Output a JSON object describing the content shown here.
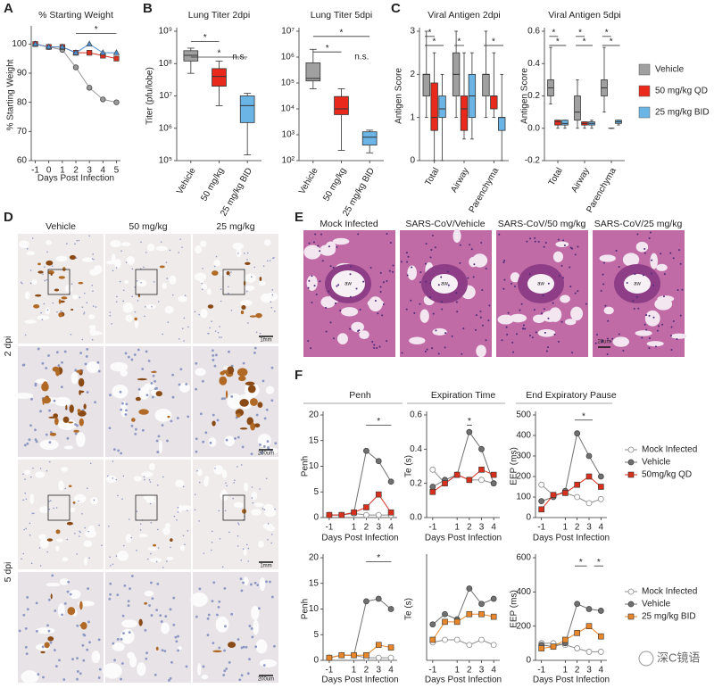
{
  "panel_labels": [
    "A",
    "B",
    "C",
    "D",
    "E",
    "F"
  ],
  "chart_data": [
    {
      "type": "line",
      "title": "% Starting Weight",
      "y_label": "% Starting Weight",
      "x_label": "Days Post Infection",
      "x": [
        -1,
        0,
        1,
        2,
        3,
        4,
        5
      ],
      "xlim": [
        -1.3,
        5.3
      ],
      "xticks": [
        -1,
        0,
        1,
        2,
        3,
        4,
        5
      ],
      "ylim": [
        60,
        105
      ],
      "yticks": [
        60,
        70,
        80,
        90,
        100
      ],
      "series": [
        {
          "color": "#9a9a9a",
          "marker": "circle",
          "values": [
            100,
            99,
            98,
            92,
            85,
            81,
            80
          ]
        },
        {
          "color": "#d9301e",
          "marker": "square",
          "values": [
            100,
            99,
            99,
            97,
            97,
            96,
            95
          ]
        },
        {
          "color": "#4f8fd0",
          "marker": "triangle",
          "values": [
            100,
            99,
            99,
            97,
            100,
            97,
            97
          ]
        }
      ],
      "annotations": [
        "*"
      ]
    },
    {
      "type": "box",
      "title": "Lung Titer 2dpi",
      "y_label": "Titer (pfu/lobe)",
      "log_scale": true,
      "categories": [
        "Vehicle",
        "50 mg/kg",
        "25 mg/kg BID"
      ],
      "colors": [
        "#a0a0a0",
        "#e8291c",
        "#6ab4e6"
      ],
      "values": [
        [
          50000000,
          120000000,
          180000000,
          250000000,
          300000000
        ],
        [
          5000000,
          20000000,
          40000000,
          70000000,
          120000000
        ],
        [
          150000,
          1500000,
          5000000,
          10000000,
          12000000
        ]
      ],
      "ylim": [
        100000,
        1000000000
      ],
      "yticks": [
        {
          "value": 100000,
          "label": "10⁵"
        },
        {
          "value": 1000000,
          "label": "10⁶"
        },
        {
          "value": 10000000,
          "label": "10⁷"
        },
        {
          "value": 100000000,
          "label": "10⁸"
        },
        {
          "value": 1000000000,
          "label": "10⁹"
        }
      ],
      "annotations": [
        "*",
        "*",
        "n.s."
      ]
    },
    {
      "type": "box",
      "title": "Lung Titer 5dpi",
      "log_scale": true,
      "categories": [
        "Vehicle",
        "50 mg/kg",
        "25 mg/kg BID"
      ],
      "colors": [
        "#a0a0a0",
        "#e8291c",
        "#6ab4e6"
      ],
      "values": [
        [
          60000,
          120000,
          150000,
          600000,
          2000000
        ],
        [
          250,
          6000,
          10000,
          30000,
          60000
        ],
        [
          200,
          400,
          800,
          1300,
          1500
        ]
      ],
      "ylim": [
        100,
        10000000
      ],
      "yticks": [
        {
          "value": 100,
          "label": "10²"
        },
        {
          "value": 1000,
          "label": "10³"
        },
        {
          "value": 10000,
          "label": "10⁴"
        },
        {
          "value": 100000,
          "label": "10⁵"
        },
        {
          "value": 1000000,
          "label": "10⁶"
        },
        {
          "value": 10000000,
          "label": "10⁷"
        }
      ],
      "annotations": [
        "*",
        "*",
        "n.s."
      ]
    },
    {
      "type": "box",
      "title": "Viral Antigen 2dpi",
      "y_label": "Antigen Score",
      "categories": [
        "Total",
        "Airway",
        "Parenchyma"
      ],
      "ylim": [
        0,
        3
      ],
      "yticks": [
        0,
        1,
        2,
        3
      ],
      "series": [
        {
          "color": "#a0a0a0",
          "values": [
            [
              1,
              1.5,
              2,
              2,
              3
            ],
            [
              1,
              1.5,
              2,
              2.5,
              3
            ],
            [
              1,
              1.5,
              2,
              2,
              3
            ]
          ]
        },
        {
          "color": "#e8291c",
          "values": [
            [
              0,
              0.7,
              1,
              1.8,
              2.5
            ],
            [
              0.5,
              0.7,
              1.2,
              1.5,
              2.5
            ],
            [
              1,
              1.2,
              1.5,
              1.5,
              2.5
            ]
          ]
        },
        {
          "color": "#6ab4e6",
          "values": [
            [
              0,
              1,
              1.2,
              1.5,
              2
            ],
            [
              0.5,
              1,
              1.5,
              2,
              2.5
            ],
            [
              0,
              0.7,
              1,
              1,
              2
            ]
          ]
        }
      ],
      "annotations": [
        "*",
        "*",
        "*",
        "*"
      ]
    },
    {
      "type": "box",
      "title": "Viral Antigen 5dpi",
      "y_label": "Antigen Score",
      "categories": [
        "Total",
        "Airway",
        "Parenchyma"
      ],
      "ylim": [
        -0.2,
        0.6
      ],
      "yticks": [
        -0.2,
        {
          "value": 0,
          "label": "0.0"
        },
        0.2,
        0.4,
        0.6
      ],
      "legend": "right",
      "series": [
        {
          "name": "Vehicle",
          "color": "#a0a0a0",
          "values": [
            [
              0.15,
              0.2,
              0.25,
              0.3,
              0.5
            ],
            [
              0,
              0.05,
              0.1,
              0.2,
              0.3
            ],
            [
              0.1,
              0.2,
              0.25,
              0.3,
              0.5
            ]
          ]
        },
        {
          "name": "50 mg/kg QD",
          "color": "#e8291c",
          "values": [
            [
              0,
              0.02,
              0.04,
              0.05,
              0.05
            ],
            [
              0,
              0.02,
              0.03,
              0.04,
              0.04
            ],
            [
              0,
              0,
              0,
              0,
              0
            ]
          ]
        },
        {
          "name": "25 mg/kg BID",
          "color": "#6ab4e6",
          "values": [
            [
              0,
              0.02,
              0.03,
              0.05,
              0.05
            ],
            [
              0,
              0.02,
              0.03,
              0.04,
              0.05
            ],
            [
              0.02,
              0.03,
              0.04,
              0.05,
              0.05
            ]
          ]
        }
      ],
      "annotations": [
        "*",
        "*",
        "*",
        "*",
        "*",
        "*"
      ]
    },
    {
      "type": "line",
      "title": "Penh",
      "y_label": "Penh",
      "x_label": "Days Post Infection",
      "x": [
        -1,
        0,
        1,
        2,
        3,
        4
      ],
      "xlim": [
        -1.5,
        4.5
      ],
      "xticks": [
        -1,
        1,
        2,
        3,
        4
      ],
      "ylim": [
        0,
        20
      ],
      "yticks": [
        0,
        5,
        10,
        15,
        20
      ],
      "series": [
        {
          "color": "#8c8c8c",
          "marker": "circle-open",
          "values": [
            0.5,
            0.5,
            0.8,
            0.5,
            0.5,
            0.5
          ]
        },
        {
          "color": "#707070",
          "marker": "circle",
          "values": [
            0.5,
            0.5,
            1,
            13,
            11,
            7
          ]
        },
        {
          "color": "#d9301e",
          "marker": "square",
          "values": [
            0.5,
            0.5,
            1,
            2,
            4.5,
            1
          ]
        }
      ],
      "annotations": [
        "*"
      ]
    },
    {
      "type": "line",
      "title": "Expiration Time",
      "y_label": "Te (s)",
      "x_label": "Days Post Infection",
      "x": [
        -1,
        0,
        1,
        2,
        3,
        4
      ],
      "xlim": [
        -1.5,
        4.5
      ],
      "xticks": [
        -1,
        1,
        2,
        3,
        4
      ],
      "ylim": [
        0,
        0.6
      ],
      "yticks": [
        {
          "value": 0,
          "label": "0.0"
        },
        0.2,
        0.4,
        0.6
      ],
      "series": [
        {
          "color": "#8c8c8c",
          "marker": "circle-open",
          "values": [
            0.28,
            0.2,
            0.25,
            0.22,
            0.22,
            0.2
          ]
        },
        {
          "color": "#707070",
          "marker": "circle",
          "values": [
            0.18,
            0.22,
            0.25,
            0.5,
            0.4,
            0.2
          ]
        },
        {
          "color": "#d9301e",
          "marker": "square",
          "values": [
            0.15,
            0.2,
            0.25,
            0.22,
            0.28,
            0.25
          ]
        }
      ],
      "annotations": [
        "*"
      ]
    },
    {
      "type": "line",
      "title": "End Expiratory Pause",
      "y_label": "EEP (ms)",
      "x_label": "Days Post Infection",
      "x": [
        -1,
        0,
        1,
        2,
        3,
        4
      ],
      "xlim": [
        -1.5,
        4.5
      ],
      "xticks": [
        -1,
        1,
        2,
        3,
        4
      ],
      "ylim": [
        0,
        500
      ],
      "yticks": [
        0,
        100,
        200,
        300,
        400,
        500
      ],
      "legend": "right",
      "series": [
        {
          "name": "Mock Infected",
          "color": "#8c8c8c",
          "marker": "circle-open",
          "values": [
            160,
            110,
            120,
            100,
            70,
            90
          ]
        },
        {
          "name": "Vehicle",
          "color": "#707070",
          "marker": "circle",
          "values": [
            80,
            100,
            130,
            410,
            300,
            200
          ]
        },
        {
          "name": "50mg/kg QD",
          "color": "#d9301e",
          "marker": "square",
          "values": [
            40,
            110,
            120,
            160,
            200,
            150
          ]
        }
      ],
      "annotations": [
        "*"
      ]
    },
    {
      "type": "line",
      "y_label": "Penh",
      "x_label": "Days Post Infection",
      "x": [
        -1,
        0,
        1,
        2,
        3,
        4
      ],
      "xlim": [
        -1.5,
        4.5
      ],
      "xticks": [
        -1,
        1,
        2,
        3,
        4
      ],
      "ylim": [
        0,
        20
      ],
      "yticks": [
        0,
        5,
        10,
        15,
        20
      ],
      "series": [
        {
          "color": "#8c8c8c",
          "marker": "circle-open",
          "values": [
            0.5,
            1,
            1,
            0.5,
            0.5,
            0.5
          ]
        },
        {
          "color": "#707070",
          "marker": "circle",
          "values": [
            0.5,
            1,
            1,
            11.5,
            12,
            10
          ]
        },
        {
          "color": "#e8862a",
          "marker": "square",
          "values": [
            0.5,
            1,
            1,
            1,
            3,
            2.5
          ]
        }
      ],
      "annotations": [
        "*"
      ]
    },
    {
      "type": "line",
      "y_label": "Te (s)",
      "x_label": "Days Post Infection",
      "x": [
        -1,
        0,
        1,
        2,
        3,
        4
      ],
      "xlim": [
        -1.5,
        4.5
      ],
      "xticks": [
        -1,
        1,
        2,
        3,
        4
      ],
      "ylim": [
        0,
        0.4
      ],
      "yticks": [],
      "series": [
        {
          "color": "#8c8c8c",
          "marker": "circle-open",
          "values": [
            0.07,
            0.08,
            0.08,
            0.06,
            0.08,
            0.06
          ]
        },
        {
          "color": "#707070",
          "marker": "circle",
          "values": [
            0.14,
            0.18,
            0.16,
            0.28,
            0.22,
            0.24
          ]
        },
        {
          "color": "#e8862a",
          "marker": "square",
          "values": [
            0.08,
            0.15,
            0.15,
            0.18,
            0.18,
            0.17
          ]
        }
      ]
    },
    {
      "type": "line",
      "y_label": "EEP (ms)",
      "x_label": "Days Post Infection",
      "x": [
        -1,
        0,
        1,
        2,
        3,
        4
      ],
      "xlim": [
        -1.5,
        4.5
      ],
      "xticks": [
        -1,
        1,
        2,
        3,
        4
      ],
      "ylim": [
        0,
        600
      ],
      "yticks": [
        0,
        200,
        400,
        600
      ],
      "legend": "right",
      "series": [
        {
          "name": "Mock Infected",
          "color": "#8c8c8c",
          "marker": "circle-open",
          "values": [
            100,
            100,
            90,
            70,
            50,
            50
          ]
        },
        {
          "name": "Vehicle",
          "color": "#707070",
          "marker": "circle",
          "values": [
            90,
            80,
            100,
            330,
            300,
            290
          ]
        },
        {
          "name": "25 mg/kg BID",
          "color": "#e8862a",
          "marker": "square",
          "values": [
            70,
            80,
            120,
            160,
            200,
            140
          ]
        }
      ],
      "annotations": [
        "*",
        "*"
      ]
    }
  ],
  "histology_d": {
    "columns": [
      "Vehicle",
      "50 mg/kg",
      "25 mg/kg"
    ],
    "rows": [
      "2 dpi",
      "5 dpi"
    ],
    "scale_bars": [
      "1mm",
      "200um",
      "1mm",
      "200um"
    ]
  },
  "histology_e": {
    "titles": [
      "Mock Infected",
      "SARS-CoV/Vehicle",
      "SARS-CoV/50 mg/kg",
      "SARS-CoV/25 mg/kg"
    ],
    "airway_labels": [
      "aw",
      "aw",
      "aw",
      "aw"
    ],
    "scale_bar": "20um"
  },
  "watermark": "深C镜语"
}
